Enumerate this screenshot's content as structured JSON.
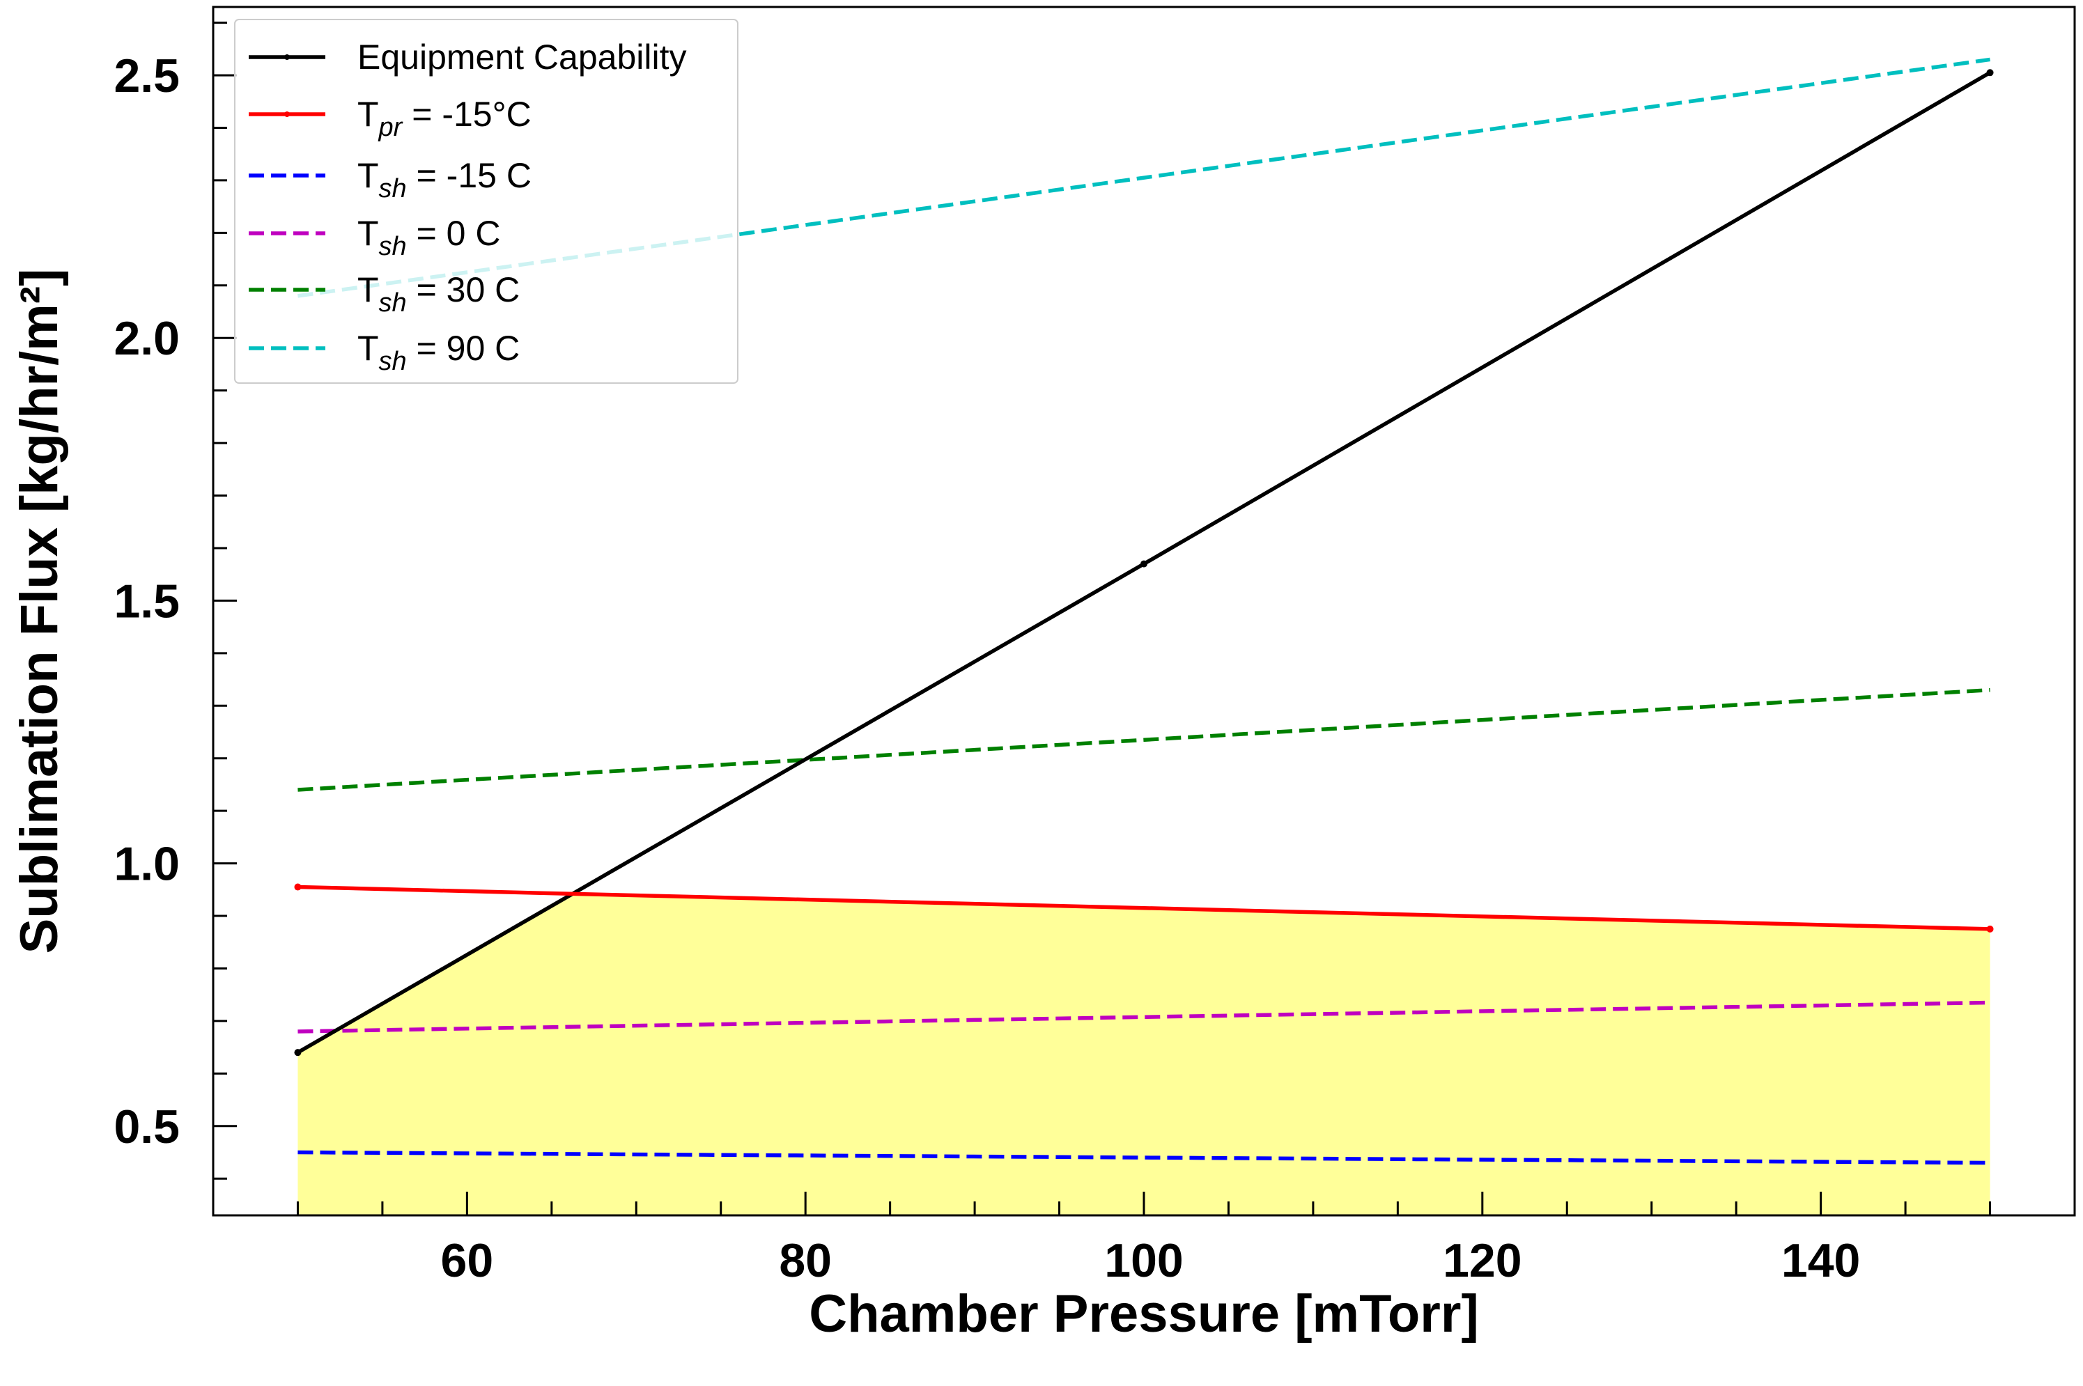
{
  "chart_data": {
    "type": "line",
    "xlabel": "Chamber Pressure [mTorr]",
    "ylabel": "Sublimation Flux [kg/hr/m²]",
    "xlim": [
      45,
      155
    ],
    "ylim": [
      0.33,
      2.63
    ],
    "x_ticks": [
      60,
      80,
      100,
      120,
      140
    ],
    "x_minor_step": 5,
    "y_ticks": [
      0.5,
      1.0,
      1.5,
      2.0,
      2.5
    ],
    "y_tick_labels": [
      "0.5",
      "1.0",
      "1.5",
      "2.0",
      "2.5"
    ],
    "y_minor_step": 0.1,
    "grid": false,
    "legend_position": "top-left",
    "feasible_region": {
      "color": "#ffff99",
      "bounded_by": [
        "Equipment Capability",
        "T_pr = -15°C"
      ]
    },
    "series": [
      {
        "name": "Equipment Capability",
        "legend": {
          "main": "Equipment Capability",
          "sub": "",
          "rest": ""
        },
        "color": "#000000",
        "style": "solid",
        "marker": "point",
        "x": [
          50,
          100,
          150
        ],
        "y": [
          0.64,
          1.57,
          2.505
        ]
      },
      {
        "name": "T_pr = -15°C",
        "legend": {
          "main": "T",
          "sub": "pr",
          "rest": " = -15°C"
        },
        "color": "#ff0000",
        "style": "solid",
        "marker": "point",
        "x": [
          50,
          150
        ],
        "y": [
          0.955,
          0.875
        ]
      },
      {
        "name": "T_sh = -15 C",
        "legend": {
          "main": "T",
          "sub": "sh",
          "rest": " = -15 C"
        },
        "color": "#0000ff",
        "style": "dashed",
        "marker": "none",
        "x": [
          50,
          150
        ],
        "y": [
          0.45,
          0.43
        ]
      },
      {
        "name": "T_sh = 0 C",
        "legend": {
          "main": "T",
          "sub": "sh",
          "rest": " = 0 C"
        },
        "color": "#bf00bf",
        "style": "dashed",
        "marker": "none",
        "x": [
          50,
          150
        ],
        "y": [
          0.68,
          0.735
        ]
      },
      {
        "name": "T_sh = 30 C",
        "legend": {
          "main": "T",
          "sub": "sh",
          "rest": " = 30 C"
        },
        "color": "#008000",
        "style": "dashed",
        "marker": "none",
        "x": [
          50,
          150
        ],
        "y": [
          1.14,
          1.33
        ]
      },
      {
        "name": "T_sh = 90 C",
        "legend": {
          "main": "T",
          "sub": "sh",
          "rest": " = 90 C"
        },
        "color": "#00bfbf",
        "style": "dashed",
        "marker": "none",
        "x": [
          50,
          150
        ],
        "y": [
          2.08,
          2.53
        ]
      }
    ]
  }
}
